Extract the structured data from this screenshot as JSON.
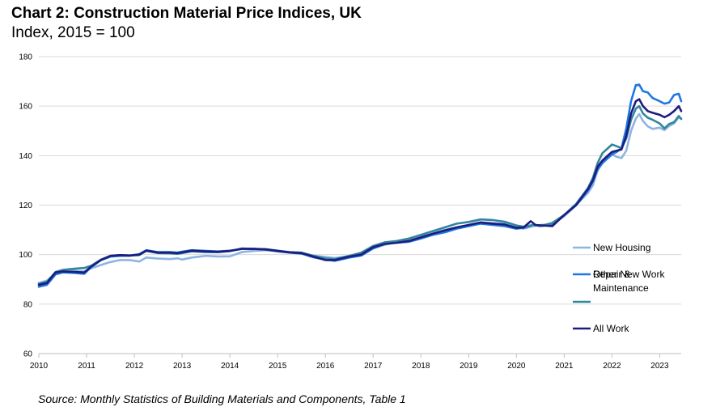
{
  "title": "Chart 2: Construction Material Price Indices, UK",
  "subtitle": "Index, 2015 = 100",
  "source": "Source: Monthly Statistics of Building Materials and Components, Table 1",
  "chart_data": {
    "type": "line",
    "x_unit": "year",
    "xlim": [
      2010,
      2023.45
    ],
    "ylim": [
      60,
      180
    ],
    "yticks": [
      "60",
      "80",
      "100",
      "120",
      "140",
      "160",
      "180"
    ],
    "xticks": [
      "2010",
      "2011",
      "2012",
      "2013",
      "2014",
      "2015",
      "2016",
      "2017",
      "2018",
      "2019",
      "2020",
      "2021",
      "2022",
      "2023"
    ],
    "grid": "horizontal",
    "legend_position": "right",
    "series": [
      {
        "name": "New Housing",
        "color": "#8EB4E3",
        "points": [
          [
            2010.0,
            88.5
          ],
          [
            2010.17,
            89.5
          ],
          [
            2010.35,
            92.5
          ],
          [
            2010.5,
            93.5
          ],
          [
            2010.75,
            93.5
          ],
          [
            2010.95,
            93.2
          ],
          [
            2011.1,
            94.5
          ],
          [
            2011.3,
            95.8
          ],
          [
            2011.5,
            97.0
          ],
          [
            2011.7,
            97.8
          ],
          [
            2011.9,
            97.8
          ],
          [
            2012.1,
            97.2
          ],
          [
            2012.25,
            98.8
          ],
          [
            2012.5,
            98.4
          ],
          [
            2012.75,
            98.2
          ],
          [
            2012.9,
            98.5
          ],
          [
            2013.0,
            98.0
          ],
          [
            2013.2,
            98.8
          ],
          [
            2013.5,
            99.5
          ],
          [
            2013.75,
            99.2
          ],
          [
            2014.0,
            99.3
          ],
          [
            2014.25,
            101.0
          ],
          [
            2014.5,
            101.5
          ],
          [
            2014.75,
            101.8
          ],
          [
            2015.0,
            101.5
          ],
          [
            2015.25,
            100.8
          ],
          [
            2015.5,
            100.6
          ],
          [
            2015.75,
            99.6
          ],
          [
            2016.0,
            99.0
          ],
          [
            2016.2,
            98.6
          ],
          [
            2016.5,
            99.3
          ],
          [
            2016.75,
            100.3
          ],
          [
            2017.0,
            102.5
          ],
          [
            2017.25,
            104.0
          ],
          [
            2017.5,
            105.0
          ],
          [
            2017.75,
            105.5
          ],
          [
            2018.0,
            107.0
          ],
          [
            2018.25,
            108.5
          ],
          [
            2018.5,
            110.0
          ],
          [
            2018.75,
            111.0
          ],
          [
            2019.0,
            112.0
          ],
          [
            2019.25,
            113.0
          ],
          [
            2019.5,
            112.8
          ],
          [
            2019.75,
            112.5
          ],
          [
            2020.0,
            111.3
          ],
          [
            2020.15,
            110.5
          ],
          [
            2020.35,
            111.5
          ],
          [
            2020.5,
            112.0
          ],
          [
            2020.75,
            112.3
          ],
          [
            2021.0,
            115.5
          ],
          [
            2021.25,
            120.0
          ],
          [
            2021.5,
            125.0
          ],
          [
            2021.6,
            128.0
          ],
          [
            2021.7,
            134.0
          ],
          [
            2021.8,
            137.0
          ],
          [
            2022.0,
            140.5
          ],
          [
            2022.1,
            139.5
          ],
          [
            2022.2,
            139.0
          ],
          [
            2022.3,
            142.0
          ],
          [
            2022.4,
            150.0
          ],
          [
            2022.5,
            155.0
          ],
          [
            2022.57,
            156.8
          ],
          [
            2022.65,
            154.0
          ],
          [
            2022.75,
            151.8
          ],
          [
            2022.85,
            150.8
          ],
          [
            2023.0,
            151.3
          ],
          [
            2023.1,
            150.3
          ],
          [
            2023.2,
            152.0
          ],
          [
            2023.3,
            153.0
          ],
          [
            2023.4,
            155.5
          ],
          [
            2023.45,
            155.0
          ]
        ]
      },
      {
        "name": "Other New Work",
        "color": "#1F77E0",
        "points": [
          [
            2010.0,
            87.0
          ],
          [
            2010.17,
            87.8
          ],
          [
            2010.35,
            92.0
          ],
          [
            2010.5,
            92.8
          ],
          [
            2010.75,
            92.6
          ],
          [
            2010.95,
            92.2
          ],
          [
            2011.1,
            95.0
          ],
          [
            2011.3,
            97.8
          ],
          [
            2011.5,
            99.2
          ],
          [
            2011.7,
            99.5
          ],
          [
            2011.9,
            99.6
          ],
          [
            2012.1,
            100.2
          ],
          [
            2012.25,
            101.8
          ],
          [
            2012.5,
            101.0
          ],
          [
            2012.75,
            101.0
          ],
          [
            2012.9,
            100.8
          ],
          [
            2013.0,
            101.2
          ],
          [
            2013.2,
            101.8
          ],
          [
            2013.5,
            101.5
          ],
          [
            2013.75,
            101.3
          ],
          [
            2014.0,
            101.6
          ],
          [
            2014.25,
            102.3
          ],
          [
            2014.5,
            102.3
          ],
          [
            2014.75,
            102.0
          ],
          [
            2015.0,
            101.3
          ],
          [
            2015.25,
            100.8
          ],
          [
            2015.5,
            100.4
          ],
          [
            2015.75,
            98.9
          ],
          [
            2016.0,
            98.0
          ],
          [
            2016.2,
            97.5
          ],
          [
            2016.5,
            98.8
          ],
          [
            2016.75,
            99.6
          ],
          [
            2017.0,
            102.5
          ],
          [
            2017.25,
            104.5
          ],
          [
            2017.5,
            104.8
          ],
          [
            2017.75,
            105.2
          ],
          [
            2018.0,
            106.5
          ],
          [
            2018.25,
            108.0
          ],
          [
            2018.5,
            109.0
          ],
          [
            2018.75,
            110.5
          ],
          [
            2019.0,
            111.5
          ],
          [
            2019.25,
            112.5
          ],
          [
            2019.5,
            112.0
          ],
          [
            2019.75,
            111.5
          ],
          [
            2020.0,
            110.5
          ],
          [
            2020.15,
            110.8
          ],
          [
            2020.35,
            112.0
          ],
          [
            2020.5,
            111.5
          ],
          [
            2020.75,
            112.0
          ],
          [
            2021.0,
            116.0
          ],
          [
            2021.25,
            120.0
          ],
          [
            2021.5,
            126.0
          ],
          [
            2021.6,
            129.5
          ],
          [
            2021.7,
            134.5
          ],
          [
            2021.8,
            137.0
          ],
          [
            2022.0,
            140.5
          ],
          [
            2022.1,
            141.5
          ],
          [
            2022.2,
            143.0
          ],
          [
            2022.3,
            151.0
          ],
          [
            2022.4,
            162.0
          ],
          [
            2022.5,
            168.5
          ],
          [
            2022.57,
            168.7
          ],
          [
            2022.65,
            166.0
          ],
          [
            2022.75,
            165.5
          ],
          [
            2022.85,
            163.3
          ],
          [
            2023.0,
            162.0
          ],
          [
            2023.1,
            161.0
          ],
          [
            2023.2,
            161.5
          ],
          [
            2023.3,
            164.5
          ],
          [
            2023.4,
            165.0
          ],
          [
            2023.45,
            162.0
          ]
        ]
      },
      {
        "name": "Repair & Maintenance",
        "color": "#31859C",
        "points": [
          [
            2010.0,
            88.2
          ],
          [
            2010.17,
            89.0
          ],
          [
            2010.35,
            93.0
          ],
          [
            2010.5,
            93.8
          ],
          [
            2010.75,
            94.3
          ],
          [
            2010.95,
            94.6
          ],
          [
            2011.1,
            95.5
          ],
          [
            2011.3,
            98.0
          ],
          [
            2011.5,
            99.5
          ],
          [
            2011.7,
            99.8
          ],
          [
            2011.9,
            99.7
          ],
          [
            2012.1,
            99.8
          ],
          [
            2012.25,
            101.5
          ],
          [
            2012.5,
            100.6
          ],
          [
            2012.75,
            100.5
          ],
          [
            2012.9,
            100.3
          ],
          [
            2013.0,
            100.6
          ],
          [
            2013.2,
            101.3
          ],
          [
            2013.5,
            101.0
          ],
          [
            2013.75,
            101.0
          ],
          [
            2014.0,
            101.4
          ],
          [
            2014.25,
            102.5
          ],
          [
            2014.5,
            102.3
          ],
          [
            2014.75,
            102.2
          ],
          [
            2015.0,
            101.6
          ],
          [
            2015.25,
            101.0
          ],
          [
            2015.5,
            100.8
          ],
          [
            2015.75,
            99.5
          ],
          [
            2016.0,
            98.5
          ],
          [
            2016.2,
            98.2
          ],
          [
            2016.5,
            99.5
          ],
          [
            2016.75,
            100.8
          ],
          [
            2017.0,
            103.5
          ],
          [
            2017.25,
            105.0
          ],
          [
            2017.5,
            105.5
          ],
          [
            2017.75,
            106.5
          ],
          [
            2018.0,
            108.0
          ],
          [
            2018.25,
            109.5
          ],
          [
            2018.5,
            111.0
          ],
          [
            2018.75,
            112.5
          ],
          [
            2019.0,
            113.2
          ],
          [
            2019.25,
            114.2
          ],
          [
            2019.5,
            114.0
          ],
          [
            2019.75,
            113.3
          ],
          [
            2020.0,
            111.8
          ],
          [
            2020.15,
            111.3
          ],
          [
            2020.35,
            112.0
          ],
          [
            2020.5,
            111.5
          ],
          [
            2020.75,
            112.8
          ],
          [
            2021.0,
            116.0
          ],
          [
            2021.25,
            120.5
          ],
          [
            2021.5,
            127.0
          ],
          [
            2021.6,
            131.0
          ],
          [
            2021.7,
            137.0
          ],
          [
            2021.8,
            141.0
          ],
          [
            2022.0,
            144.5
          ],
          [
            2022.1,
            143.8
          ],
          [
            2022.2,
            143.0
          ],
          [
            2022.3,
            147.0
          ],
          [
            2022.4,
            154.5
          ],
          [
            2022.5,
            159.0
          ],
          [
            2022.57,
            160.0
          ],
          [
            2022.65,
            157.0
          ],
          [
            2022.75,
            155.3
          ],
          [
            2022.85,
            154.5
          ],
          [
            2023.0,
            153.0
          ],
          [
            2023.1,
            151.0
          ],
          [
            2023.2,
            152.8
          ],
          [
            2023.3,
            153.5
          ],
          [
            2023.4,
            156.0
          ],
          [
            2023.45,
            154.8
          ]
        ]
      },
      {
        "name": "All Work",
        "color": "#1C1C7E",
        "points": [
          [
            2010.0,
            87.8
          ],
          [
            2010.17,
            88.5
          ],
          [
            2010.35,
            92.8
          ],
          [
            2010.5,
            93.2
          ],
          [
            2010.75,
            93.0
          ],
          [
            2010.95,
            92.8
          ],
          [
            2011.1,
            95.2
          ],
          [
            2011.3,
            97.8
          ],
          [
            2011.5,
            99.5
          ],
          [
            2011.7,
            99.8
          ],
          [
            2011.9,
            99.6
          ],
          [
            2012.1,
            100.0
          ],
          [
            2012.25,
            101.6
          ],
          [
            2012.5,
            100.8
          ],
          [
            2012.75,
            100.8
          ],
          [
            2012.9,
            100.6
          ],
          [
            2013.0,
            100.9
          ],
          [
            2013.2,
            101.6
          ],
          [
            2013.5,
            101.3
          ],
          [
            2013.75,
            101.1
          ],
          [
            2014.0,
            101.5
          ],
          [
            2014.25,
            102.3
          ],
          [
            2014.5,
            102.3
          ],
          [
            2014.75,
            102.1
          ],
          [
            2015.0,
            101.5
          ],
          [
            2015.25,
            100.9
          ],
          [
            2015.5,
            100.6
          ],
          [
            2015.75,
            99.2
          ],
          [
            2016.0,
            97.8
          ],
          [
            2016.2,
            97.8
          ],
          [
            2016.5,
            99.2
          ],
          [
            2016.75,
            100.0
          ],
          [
            2017.0,
            103.0
          ],
          [
            2017.25,
            104.3
          ],
          [
            2017.5,
            104.8
          ],
          [
            2017.75,
            105.5
          ],
          [
            2018.0,
            107.0
          ],
          [
            2018.25,
            108.5
          ],
          [
            2018.5,
            109.8
          ],
          [
            2018.75,
            111.0
          ],
          [
            2019.0,
            112.0
          ],
          [
            2019.25,
            113.0
          ],
          [
            2019.5,
            112.5
          ],
          [
            2019.75,
            112.2
          ],
          [
            2020.0,
            110.8
          ],
          [
            2020.15,
            111.0
          ],
          [
            2020.3,
            113.5
          ],
          [
            2020.4,
            112.0
          ],
          [
            2020.75,
            111.5
          ],
          [
            2021.0,
            116.0
          ],
          [
            2021.25,
            120.0
          ],
          [
            2021.5,
            126.5
          ],
          [
            2021.6,
            130.0
          ],
          [
            2021.7,
            135.5
          ],
          [
            2021.8,
            138.0
          ],
          [
            2022.0,
            141.5
          ],
          [
            2022.1,
            142.0
          ],
          [
            2022.2,
            142.5
          ],
          [
            2022.3,
            148.0
          ],
          [
            2022.4,
            157.0
          ],
          [
            2022.5,
            162.0
          ],
          [
            2022.57,
            162.8
          ],
          [
            2022.65,
            160.0
          ],
          [
            2022.75,
            158.0
          ],
          [
            2022.85,
            157.3
          ],
          [
            2023.0,
            156.5
          ],
          [
            2023.1,
            155.5
          ],
          [
            2023.2,
            156.5
          ],
          [
            2023.3,
            158.0
          ],
          [
            2023.4,
            160.0
          ],
          [
            2023.45,
            158.0
          ]
        ]
      }
    ]
  }
}
